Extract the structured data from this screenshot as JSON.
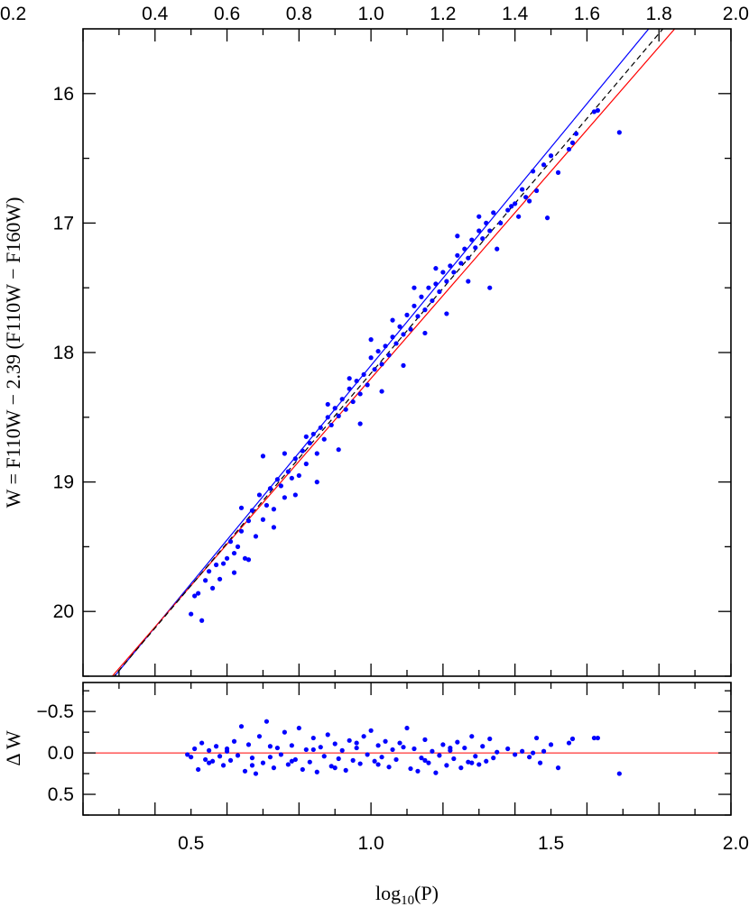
{
  "chart_data": [
    {
      "type": "scatter",
      "panel": "main",
      "xlabel": "log10(P)",
      "ylabel": "W = F110W − 2.39 (F110W − F160W)",
      "xlim": [
        0.2,
        2.0
      ],
      "ylim": [
        20.5,
        15.5
      ],
      "y_inverted": true,
      "top_axis_ticks": [
        "0.2",
        "0.4",
        "0.6",
        "0.8",
        "1.0",
        "1.2",
        "1.4",
        "1.6",
        "1.8",
        "2.0"
      ],
      "y_ticks": [
        "16",
        "17",
        "18",
        "19",
        "20"
      ],
      "lines": [
        {
          "color": "#0000ff",
          "style": "solid",
          "slope": -3.37,
          "intercept": 21.47
        },
        {
          "color": "#ff0000",
          "style": "solid",
          "slope": -3.2,
          "intercept": 21.4
        },
        {
          "color": "#000000",
          "style": "dashed",
          "slope": -3.28,
          "intercept": 21.44
        }
      ],
      "series": [
        {
          "color": "#0000ff",
          "points": [
            [
              0.5,
              20.02
            ],
            [
              0.51,
              19.88
            ],
            [
              0.52,
              19.86
            ],
            [
              0.53,
              20.07
            ],
            [
              0.54,
              19.76
            ],
            [
              0.55,
              19.69
            ],
            [
              0.56,
              19.82
            ],
            [
              0.57,
              19.64
            ],
            [
              0.58,
              19.75
            ],
            [
              0.59,
              19.63
            ],
            [
              0.6,
              19.59
            ],
            [
              0.61,
              19.46
            ],
            [
              0.62,
              19.55
            ],
            [
              0.63,
              19.5
            ],
            [
              0.64,
              19.38
            ],
            [
              0.65,
              19.59
            ],
            [
              0.66,
              19.3
            ],
            [
              0.67,
              19.22
            ],
            [
              0.68,
              19.42
            ],
            [
              0.69,
              19.1
            ],
            [
              0.7,
              19.29
            ],
            [
              0.71,
              19.18
            ],
            [
              0.72,
              19.05
            ],
            [
              0.73,
              19.21
            ],
            [
              0.74,
              18.98
            ],
            [
              0.75,
              19.03
            ],
            [
              0.76,
              19.12
            ],
            [
              0.77,
              18.92
            ],
            [
              0.78,
              18.97
            ],
            [
              0.79,
              18.82
            ],
            [
              0.8,
              18.95
            ],
            [
              0.81,
              18.76
            ],
            [
              0.82,
              18.86
            ],
            [
              0.83,
              18.7
            ],
            [
              0.84,
              18.63
            ],
            [
              0.85,
              18.78
            ],
            [
              0.86,
              18.58
            ],
            [
              0.87,
              18.67
            ],
            [
              0.88,
              18.5
            ],
            [
              0.89,
              18.56
            ],
            [
              0.9,
              18.43
            ],
            [
              0.91,
              18.49
            ],
            [
              0.92,
              18.36
            ],
            [
              0.93,
              18.44
            ],
            [
              0.94,
              18.28
            ],
            [
              0.95,
              18.38
            ],
            [
              0.96,
              18.22
            ],
            [
              0.97,
              18.32
            ],
            [
              0.98,
              18.17
            ],
            [
              0.99,
              18.25
            ],
            [
              1.0,
              18.04
            ],
            [
              1.01,
              18.13
            ],
            [
              1.02,
              17.99
            ],
            [
              1.03,
              18.09
            ],
            [
              1.04,
              17.95
            ],
            [
              1.05,
              18.02
            ],
            [
              1.06,
              17.88
            ],
            [
              1.07,
              17.93
            ],
            [
              1.08,
              17.8
            ],
            [
              1.09,
              17.86
            ],
            [
              1.1,
              17.71
            ],
            [
              1.11,
              17.82
            ],
            [
              1.12,
              17.64
            ],
            [
              1.13,
              17.72
            ],
            [
              1.14,
              17.57
            ],
            [
              1.15,
              17.67
            ],
            [
              1.16,
              17.5
            ],
            [
              1.17,
              17.6
            ],
            [
              1.18,
              17.47
            ],
            [
              1.19,
              17.53
            ],
            [
              1.2,
              17.38
            ],
            [
              1.21,
              17.45
            ],
            [
              1.22,
              17.33
            ],
            [
              1.23,
              17.38
            ],
            [
              1.24,
              17.25
            ],
            [
              1.25,
              17.31
            ],
            [
              1.26,
              17.2
            ],
            [
              1.27,
              17.27
            ],
            [
              1.28,
              17.13
            ],
            [
              1.29,
              17.19
            ],
            [
              1.3,
              17.06
            ],
            [
              1.31,
              17.12
            ],
            [
              1.32,
              17.0
            ],
            [
              1.33,
              17.06
            ],
            [
              1.34,
              16.92
            ],
            [
              1.35,
              17.2
            ],
            [
              0.62,
              19.7
            ],
            [
              0.64,
              19.2
            ],
            [
              0.66,
              19.6
            ],
            [
              0.7,
              18.8
            ],
            [
              0.73,
              19.35
            ],
            [
              0.76,
              18.78
            ],
            [
              0.79,
              19.1
            ],
            [
              0.82,
              18.65
            ],
            [
              0.85,
              19.0
            ],
            [
              0.88,
              18.4
            ],
            [
              0.91,
              18.75
            ],
            [
              0.94,
              18.2
            ],
            [
              0.97,
              18.55
            ],
            [
              1.0,
              17.9
            ],
            [
              1.03,
              18.3
            ],
            [
              1.06,
              17.75
            ],
            [
              1.09,
              18.1
            ],
            [
              1.12,
              17.5
            ],
            [
              1.15,
              17.85
            ],
            [
              1.18,
              17.35
            ],
            [
              1.21,
              17.7
            ],
            [
              1.24,
              17.1
            ],
            [
              1.27,
              17.45
            ],
            [
              1.3,
              16.95
            ],
            [
              1.33,
              17.5
            ],
            [
              1.36,
              17.0
            ],
            [
              1.38,
              16.9
            ],
            [
              1.39,
              16.87
            ],
            [
              1.4,
              16.85
            ],
            [
              1.41,
              16.95
            ],
            [
              1.42,
              16.74
            ],
            [
              1.43,
              16.8
            ],
            [
              1.44,
              16.83
            ],
            [
              1.45,
              16.6
            ],
            [
              1.46,
              16.75
            ],
            [
              1.48,
              16.55
            ],
            [
              1.49,
              16.96
            ],
            [
              1.5,
              16.48
            ],
            [
              1.52,
              16.61
            ],
            [
              1.55,
              16.43
            ],
            [
              1.56,
              16.38
            ],
            [
              1.57,
              16.31
            ],
            [
              1.62,
              16.14
            ],
            [
              1.63,
              16.13
            ],
            [
              1.69,
              16.3
            ]
          ]
        }
      ]
    },
    {
      "type": "scatter",
      "panel": "residual",
      "xlabel": "log10(P)",
      "ylabel": "Δ W",
      "xlim": [
        0.2,
        2.0
      ],
      "ylim": [
        0.75,
        -0.85
      ],
      "y_inverted": true,
      "x_ticks": [
        "0.5",
        "1.0",
        "1.5",
        "2.0"
      ],
      "y_ticks": [
        "−0.5",
        "0.0",
        "0.5"
      ],
      "zero_line_color": "#ff0000",
      "series": [
        {
          "color": "#0000ff",
          "points": [
            [
              0.49,
              0.02
            ],
            [
              0.5,
              0.05
            ],
            [
              0.51,
              -0.05
            ],
            [
              0.52,
              0.2
            ],
            [
              0.53,
              -0.12
            ],
            [
              0.54,
              0.08
            ],
            [
              0.55,
              -0.03
            ],
            [
              0.56,
              0.1
            ],
            [
              0.57,
              -0.08
            ],
            [
              0.58,
              0.04
            ],
            [
              0.59,
              0.15
            ],
            [
              0.6,
              -0.02
            ],
            [
              0.61,
              0.09
            ],
            [
              0.62,
              -0.14
            ],
            [
              0.63,
              0.03
            ],
            [
              0.64,
              -0.32
            ],
            [
              0.65,
              0.22
            ],
            [
              0.66,
              -0.1
            ],
            [
              0.67,
              0.06
            ],
            [
              0.68,
              0.25
            ],
            [
              0.69,
              -0.2
            ],
            [
              0.7,
              0.12
            ],
            [
              0.71,
              -0.38
            ],
            [
              0.72,
              0.05
            ],
            [
              0.73,
              0.18
            ],
            [
              0.74,
              -0.06
            ],
            [
              0.75,
              0.02
            ],
            [
              0.76,
              -0.25
            ],
            [
              0.77,
              0.14
            ],
            [
              0.78,
              -0.09
            ],
            [
              0.79,
              0.08
            ],
            [
              0.8,
              -0.3
            ],
            [
              0.81,
              0.2
            ],
            [
              0.82,
              -0.04
            ],
            [
              0.83,
              0.11
            ],
            [
              0.84,
              -0.18
            ],
            [
              0.85,
              0.23
            ],
            [
              0.86,
              -0.07
            ],
            [
              0.87,
              0.04
            ],
            [
              0.88,
              -0.22
            ],
            [
              0.89,
              0.16
            ],
            [
              0.9,
              -0.11
            ],
            [
              0.91,
              0.07
            ],
            [
              0.92,
              -0.03
            ],
            [
              0.93,
              0.21
            ],
            [
              0.94,
              -0.15
            ],
            [
              0.95,
              0.09
            ],
            [
              0.96,
              -0.06
            ],
            [
              0.97,
              0.13
            ],
            [
              0.98,
              -0.2
            ],
            [
              0.99,
              0.02
            ],
            [
              1.0,
              -0.27
            ],
            [
              1.01,
              0.1
            ],
            [
              1.02,
              -0.09
            ],
            [
              1.03,
              0.05
            ],
            [
              1.04,
              -0.14
            ],
            [
              1.05,
              0.17
            ],
            [
              1.06,
              -0.04
            ],
            [
              1.07,
              0.08
            ],
            [
              1.08,
              -0.12
            ],
            [
              1.1,
              -0.3
            ],
            [
              1.11,
              0.19
            ],
            [
              1.12,
              -0.05
            ],
            [
              1.13,
              0.22
            ],
            [
              1.14,
              0.06
            ],
            [
              1.15,
              -0.16
            ],
            [
              1.16,
              0.12
            ],
            [
              1.17,
              -0.02
            ],
            [
              1.18,
              0.24
            ],
            [
              1.19,
              0.03
            ],
            [
              1.2,
              -0.1
            ],
            [
              1.21,
              0.15
            ],
            [
              1.22,
              -0.03
            ],
            [
              1.23,
              0.07
            ],
            [
              1.24,
              -0.13
            ],
            [
              1.25,
              0.18
            ],
            [
              1.26,
              -0.06
            ],
            [
              1.27,
              0.11
            ],
            [
              1.28,
              -0.2
            ],
            [
              1.29,
              0.04
            ],
            [
              1.3,
              0.14
            ],
            [
              1.31,
              -0.08
            ],
            [
              1.32,
              0.1
            ],
            [
              1.33,
              -0.17
            ],
            [
              1.34,
              0.06
            ],
            [
              1.35,
              -0.01
            ],
            [
              0.55,
              0.12
            ],
            [
              0.6,
              -0.05
            ],
            [
              0.67,
              0.15
            ],
            [
              0.72,
              -0.08
            ],
            [
              0.78,
              0.1
            ],
            [
              0.84,
              -0.04
            ],
            [
              0.9,
              0.18
            ],
            [
              0.96,
              -0.12
            ],
            [
              1.02,
              0.14
            ],
            [
              1.09,
              -0.07
            ],
            [
              1.15,
              0.09
            ],
            [
              1.22,
              -0.06
            ],
            [
              1.28,
              0.12
            ],
            [
              1.38,
              -0.05
            ],
            [
              1.4,
              0.02
            ],
            [
              1.42,
              -0.02
            ],
            [
              1.44,
              0.05
            ],
            [
              1.45,
              0.0
            ],
            [
              1.46,
              -0.18
            ],
            [
              1.47,
              0.12
            ],
            [
              1.48,
              -0.02
            ],
            [
              1.5,
              -0.1
            ],
            [
              1.52,
              0.18
            ],
            [
              1.55,
              -0.12
            ],
            [
              1.56,
              -0.17
            ],
            [
              1.62,
              -0.18
            ],
            [
              1.63,
              -0.18
            ],
            [
              1.69,
              0.25
            ]
          ]
        }
      ]
    }
  ]
}
